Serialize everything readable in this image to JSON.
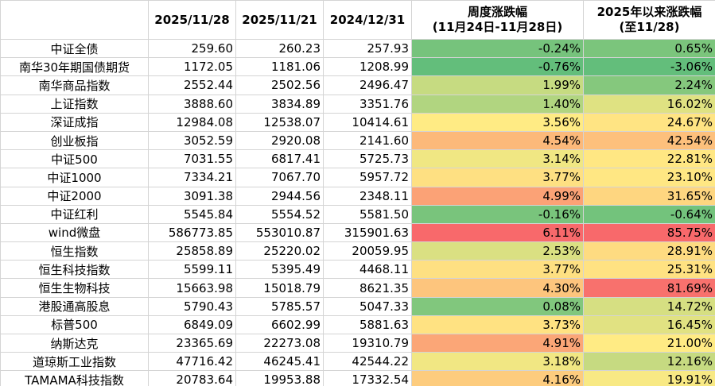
{
  "table": {
    "headers": {
      "name": "",
      "d1": "2025/11/28",
      "d2": "2025/11/21",
      "d3": "2024/12/31",
      "weekly_line1": "周度涨跌幅",
      "weekly_line2": "(11月24日-11月28日)",
      "ytd_line1": "2025年以来涨跌幅",
      "ytd_line2": "(至11/28)"
    },
    "rows": [
      {
        "name": "中证全债",
        "d1": "259.60",
        "d2": "260.23",
        "d3": "257.93",
        "weekly": "-0.24%",
        "ytd": "0.65%"
      },
      {
        "name": "南华30年期国债期货",
        "d1": "1172.05",
        "d2": "1181.06",
        "d3": "1208.99",
        "weekly": "-0.76%",
        "ytd": "-3.06%"
      },
      {
        "name": "南华商品指数",
        "d1": "2552.44",
        "d2": "2502.56",
        "d3": "2496.47",
        "weekly": "1.99%",
        "ytd": "2.24%"
      },
      {
        "name": "上证指数",
        "d1": "3888.60",
        "d2": "3834.89",
        "d3": "3351.76",
        "weekly": "1.40%",
        "ytd": "16.02%"
      },
      {
        "name": "深证成指",
        "d1": "12984.08",
        "d2": "12538.07",
        "d3": "10414.61",
        "weekly": "3.56%",
        "ytd": "24.67%"
      },
      {
        "name": "创业板指",
        "d1": "3052.59",
        "d2": "2920.08",
        "d3": "2141.60",
        "weekly": "4.54%",
        "ytd": "42.54%"
      },
      {
        "name": "中证500",
        "d1": "7031.55",
        "d2": "6817.41",
        "d3": "5725.73",
        "weekly": "3.14%",
        "ytd": "22.81%"
      },
      {
        "name": "中证1000",
        "d1": "7334.21",
        "d2": "7067.70",
        "d3": "5957.72",
        "weekly": "3.77%",
        "ytd": "23.10%"
      },
      {
        "name": "中证2000",
        "d1": "3091.38",
        "d2": "2944.56",
        "d3": "2348.11",
        "weekly": "4.99%",
        "ytd": "31.65%"
      },
      {
        "name": "中证红利",
        "d1": "5545.84",
        "d2": "5554.52",
        "d3": "5581.50",
        "weekly": "-0.16%",
        "ytd": "-0.64%"
      },
      {
        "name": "wind微盘",
        "d1": "586773.85",
        "d2": "553010.87",
        "d3": "315901.63",
        "weekly": "6.11%",
        "ytd": "85.75%"
      },
      {
        "name": "恒生指数",
        "d1": "25858.89",
        "d2": "25220.02",
        "d3": "20059.95",
        "weekly": "2.53%",
        "ytd": "28.91%"
      },
      {
        "name": "恒生科技指数",
        "d1": "5599.11",
        "d2": "5395.49",
        "d3": "4468.11",
        "weekly": "3.77%",
        "ytd": "25.31%"
      },
      {
        "name": "恒生生物科技",
        "d1": "15663.98",
        "d2": "15018.79",
        "d3": "8621.35",
        "weekly": "4.30%",
        "ytd": "81.69%"
      },
      {
        "name": "港股通高股息",
        "d1": "5790.43",
        "d2": "5785.57",
        "d3": "5047.33",
        "weekly": "0.08%",
        "ytd": "14.72%"
      },
      {
        "name": "标普500",
        "d1": "6849.09",
        "d2": "6602.99",
        "d3": "5881.63",
        "weekly": "3.73%",
        "ytd": "16.45%"
      },
      {
        "name": "纳斯达克",
        "d1": "23365.69",
        "d2": "22273.08",
        "d3": "19310.79",
        "weekly": "4.91%",
        "ytd": "21.00%"
      },
      {
        "name": "道琼斯工业指数",
        "d1": "47716.42",
        "d2": "46245.41",
        "d3": "42544.22",
        "weekly": "3.18%",
        "ytd": "12.16%"
      },
      {
        "name": "TAMAMA科技指数",
        "d1": "20783.64",
        "d2": "19953.88",
        "d3": "17332.54",
        "weekly": "4.16%",
        "ytd": "19.91%"
      }
    ]
  },
  "colors": {
    "scale_low": "#63be7b",
    "scale_mid": "#ffeb84",
    "scale_high": "#f8696b",
    "grid": "#d4d4d4"
  }
}
